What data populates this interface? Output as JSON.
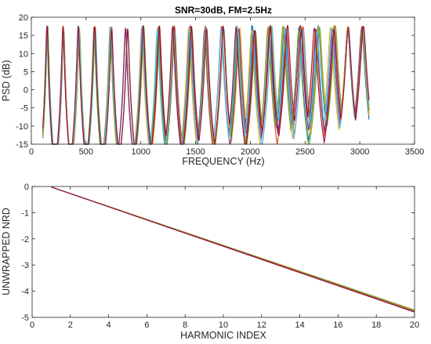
{
  "chart_data": [
    {
      "type": "line",
      "title": "SNR=30dB, FM=2.5Hz",
      "xlabel": "FREQUENCY (Hz)",
      "ylabel": "PSD (dB)",
      "xlim": [
        0,
        3500
      ],
      "ylim": [
        -15,
        20
      ],
      "xticks": [
        "0",
        "500",
        "1000",
        "1500",
        "2000",
        "2500",
        "3000",
        "3500"
      ],
      "yticks": [
        "-15",
        "-10",
        "-5",
        "0",
        "5",
        "10",
        "15",
        "20"
      ],
      "harmonic_peaks_hz": [
        145,
        290,
        435,
        580,
        725,
        870,
        1015,
        1160,
        1305,
        1450,
        1595,
        1740,
        1885,
        2030,
        2175,
        2320,
        2465,
        2610,
        2755,
        2900,
        3045
      ],
      "peak_level_db": 17,
      "floor_db": -15,
      "series_colors": [
        "#0072BD",
        "#D95319",
        "#EDB120",
        "#7E2F8E",
        "#77AC30",
        "#4DBEEE",
        "#A2142F"
      ],
      "grid": false
    },
    {
      "type": "line",
      "title": "",
      "xlabel": "HARMONIC INDEX",
      "ylabel": "UNWRAPPED NRD",
      "xlim": [
        0,
        20
      ],
      "ylim": [
        -5,
        0
      ],
      "xticks": [
        "0",
        "2",
        "4",
        "6",
        "8",
        "10",
        "12",
        "14",
        "16",
        "18",
        "20"
      ],
      "yticks": [
        "-5",
        "-4",
        "-3",
        "-2",
        "-1",
        "0"
      ],
      "x": [
        1,
        20
      ],
      "series": [
        {
          "values": [
            -0.02,
            -4.72
          ],
          "color": "#77AC30"
        },
        {
          "values": [
            -0.02,
            -4.76
          ],
          "color": "#D95319"
        },
        {
          "values": [
            -0.02,
            -4.79
          ],
          "color": "#0072BD"
        },
        {
          "values": [
            -0.02,
            -4.8
          ],
          "color": "#A2142F"
        }
      ],
      "grid": false
    }
  ]
}
